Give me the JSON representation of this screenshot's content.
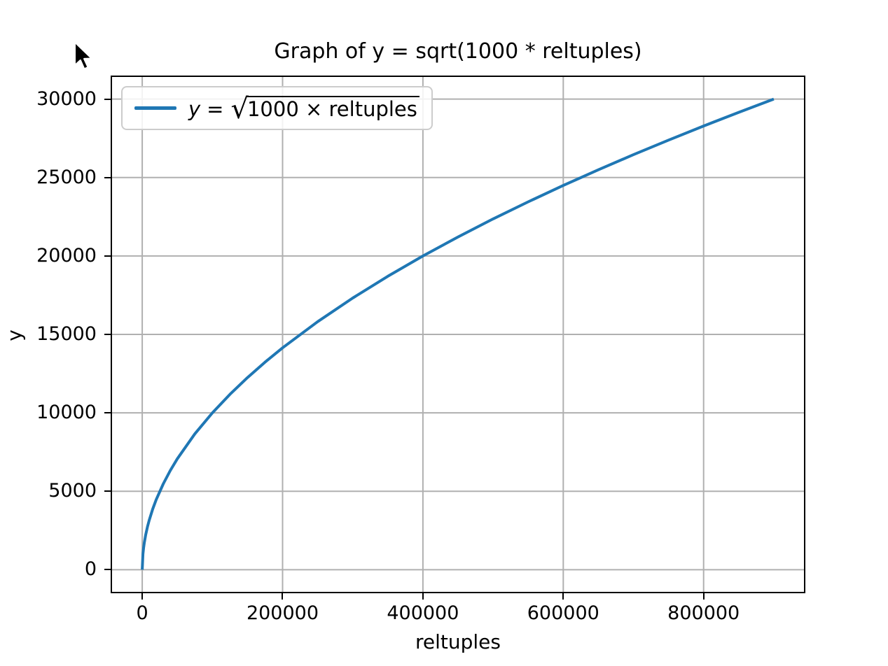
{
  "chart_data": {
    "type": "line",
    "title": "Graph of y = sqrt(1000 * reltuples)",
    "xlabel": "reltuples",
    "ylabel": "y",
    "xlim": [
      -45000,
      945000
    ],
    "ylim": [
      -1500,
      31500
    ],
    "x_ticks": [
      0,
      200000,
      400000,
      600000,
      800000
    ],
    "x_tick_labels": [
      "0",
      "200000",
      "400000",
      "600000",
      "800000"
    ],
    "y_ticks": [
      0,
      5000,
      10000,
      15000,
      20000,
      25000,
      30000
    ],
    "y_tick_labels": [
      "0",
      "5000",
      "10000",
      "15000",
      "20000",
      "25000",
      "30000"
    ],
    "grid": true,
    "legend_position": "upper left",
    "legend": {
      "lhs": "y",
      "equals": "=",
      "radical_symbol": "√",
      "radicand": "1000 × reltuples",
      "label_plain": "y = sqrt(1000 × reltuples)"
    },
    "colors": {
      "line": "#1f77b4",
      "grid": "#b0b0b0",
      "spine": "#000000",
      "background": "#ffffff",
      "legend_border": "#cccccc",
      "text": "#000000"
    },
    "series": [
      {
        "name": "y = sqrt(1000 * reltuples)",
        "color": "#1f77b4",
        "x": [
          0,
          1000,
          2000,
          3000,
          5000,
          7500,
          10000,
          15000,
          20000,
          30000,
          40000,
          50000,
          75000,
          100000,
          125000,
          150000,
          175000,
          200000,
          250000,
          300000,
          350000,
          400000,
          450000,
          500000,
          550000,
          600000,
          650000,
          700000,
          750000,
          800000,
          850000,
          900000
        ],
        "y": [
          0,
          1000,
          1414,
          1732,
          2236,
          2739,
          3162,
          3873,
          4472,
          5477,
          6325,
          7071,
          8660,
          10000,
          11180,
          12247,
          13229,
          14142,
          15811,
          17321,
          18708,
          20000,
          21213,
          22361,
          23452,
          24495,
          25495,
          26458,
          27386,
          28284,
          29155,
          30000
        ]
      }
    ]
  },
  "icons": {
    "mouse_cursor": "arrow-pointer"
  }
}
